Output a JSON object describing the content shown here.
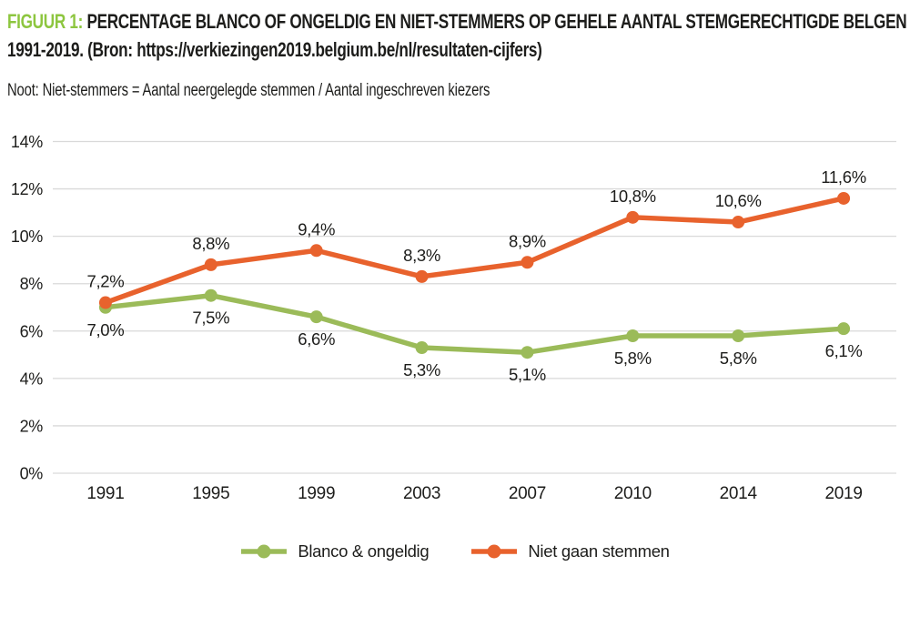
{
  "figure": {
    "label": "FIGUUR 1:",
    "title": "PERCENTAGE BLANCO OF ONGELDIG EN NIET-STEMMERS OP GEHELE AANTAL STEMGERECHTIGDE BELGEN 1991-2019. (Bron: https://verkiezingen2019.belgium.be/nl/resultaten-cijfers)",
    "note": "Noot: Niet-stemmers = Aantal neergelegde stemmen / Aantal ingeschreven kiezers",
    "accent_color": "#8dc63f",
    "text_color": "#1d1d1b"
  },
  "chart_data": {
    "type": "line",
    "categories": [
      "1991",
      "1995",
      "1999",
      "2003",
      "2007",
      "2010",
      "2014",
      "2019"
    ],
    "series": [
      {
        "name": "Blanco & ongeldig",
        "color": "#9bbb59",
        "values": [
          7.0,
          7.5,
          6.6,
          5.3,
          5.1,
          5.8,
          5.8,
          6.1
        ],
        "labels": [
          "7,0%",
          "7,5%",
          "6,6%",
          "5,3%",
          "5,1%",
          "5,8%",
          "5,8%",
          "6,1%"
        ],
        "label_position": "below"
      },
      {
        "name": "Niet gaan stemmen",
        "color": "#e8622d",
        "values": [
          7.2,
          8.8,
          9.4,
          8.3,
          8.9,
          10.8,
          10.6,
          11.6
        ],
        "labels": [
          "7,2%",
          "8,8%",
          "9,4%",
          "8,3%",
          "8,9%",
          "10,8%",
          "10,6%",
          "11,6%"
        ],
        "label_position": "above"
      }
    ],
    "ylim": [
      0,
      14
    ],
    "ytick_step": 2,
    "ytick_labels": [
      "0%",
      "2%",
      "4%",
      "6%",
      "8%",
      "10%",
      "12%",
      "14%"
    ],
    "grid": true,
    "grid_color": "#d9d9d9",
    "legend_position": "bottom"
  }
}
